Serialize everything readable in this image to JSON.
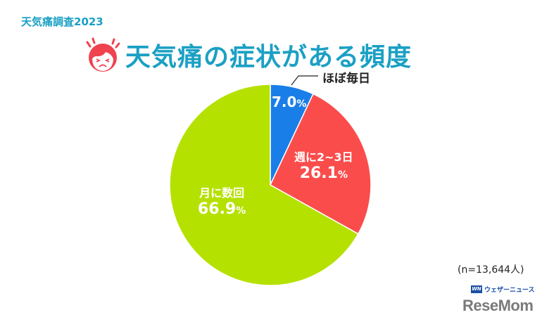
{
  "header": {
    "subtitle": "天気痛調査2023",
    "title": "天気痛の症状がある頻度",
    "icon": "pained-face-icon"
  },
  "colors": {
    "title": "#1ba0c4",
    "daily": "#1a7ee8",
    "weekly": "#fb4c4c",
    "monthly": "#b5e100",
    "face": "#f0424f"
  },
  "chart_data": {
    "type": "pie",
    "title": "天気痛の症状がある頻度",
    "subtitle": "天気痛調査2023",
    "categories": [
      "ほぼ毎日",
      "週に2~3日",
      "月に数回"
    ],
    "values": [
      7.0,
      26.1,
      66.9
    ],
    "unit": "%",
    "colors": [
      "#1a7ee8",
      "#fb4c4c",
      "#b5e100"
    ],
    "start_angle": "12 o'clock, clockwise",
    "annotations": [
      "(n=13,644人)"
    ]
  },
  "labels": {
    "daily": {
      "category": "ほぼ毎日",
      "value": "7.0",
      "pct": "%"
    },
    "weekly": {
      "category": "週に2~3日",
      "value": "26.1",
      "pct": "%"
    },
    "monthly": {
      "category": "月に数回",
      "value": "66.9",
      "pct": "%"
    }
  },
  "footer": {
    "sample_size": "(n=13,644人)",
    "source_mark": "WN",
    "source_name": "ウェザーニュース",
    "watermark": "ReseMom"
  }
}
